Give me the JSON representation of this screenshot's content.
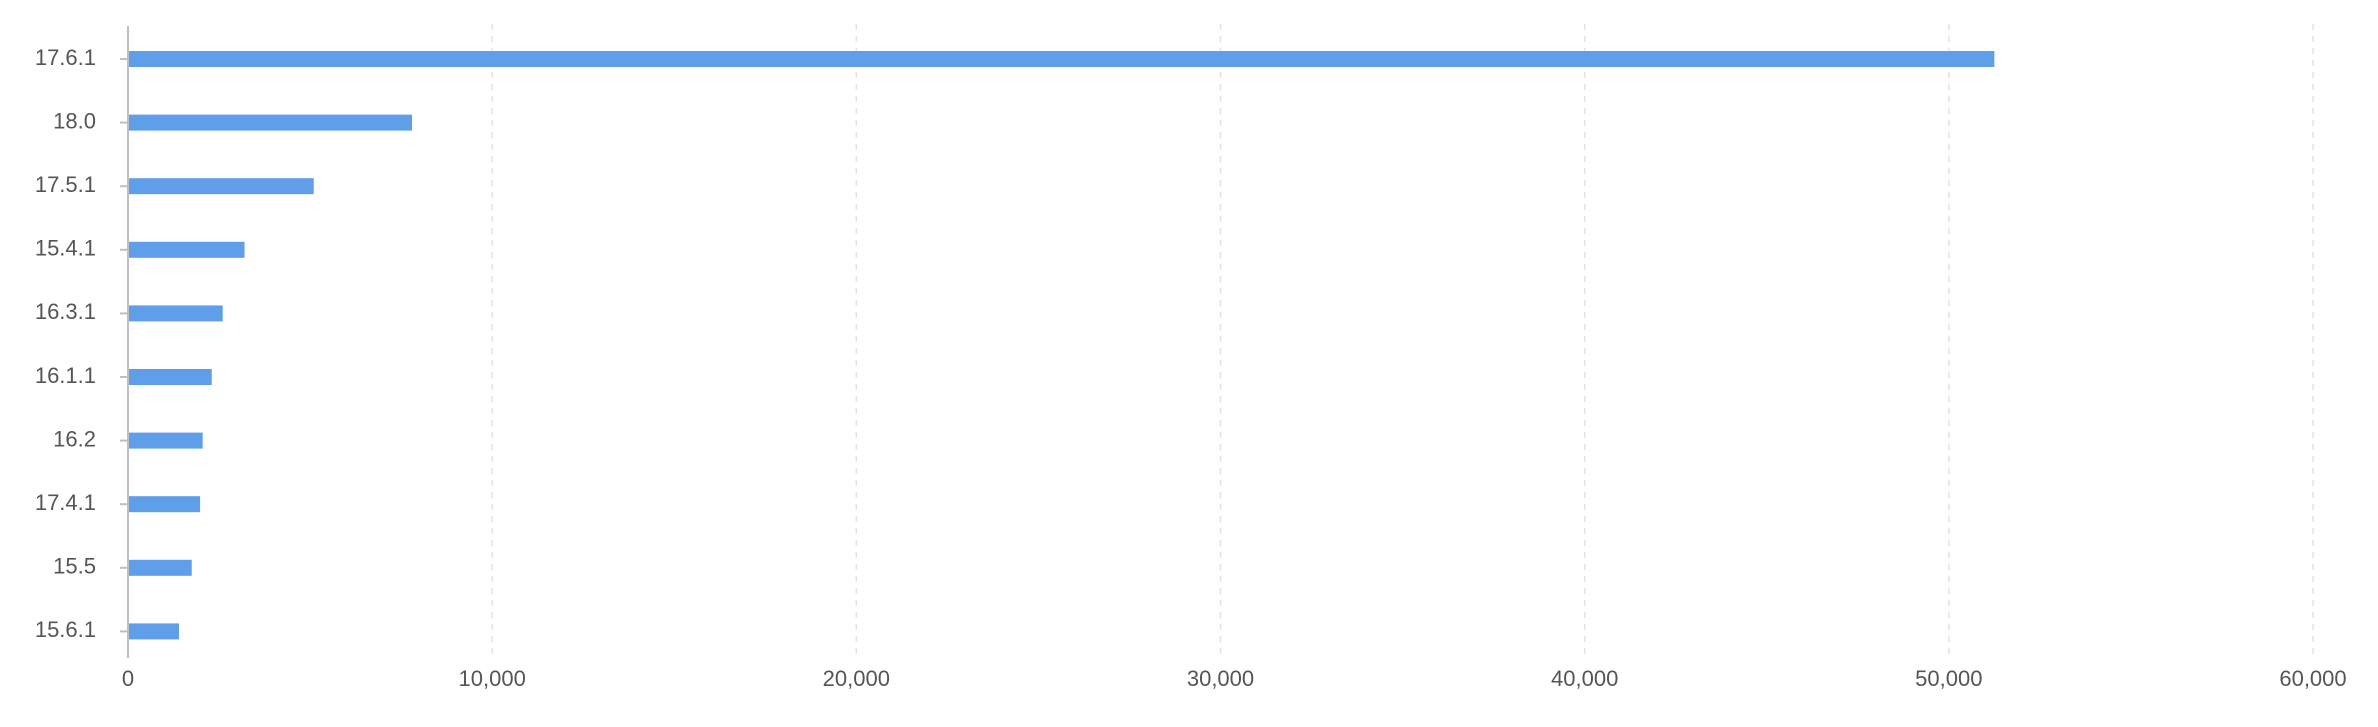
{
  "chart_data": {
    "type": "bar",
    "orientation": "horizontal",
    "categories": [
      "17.6.1",
      "18.0",
      "17.5.1",
      "15.4.1",
      "16.3.1",
      "16.1.1",
      "16.2",
      "17.4.1",
      "15.5",
      "15.6.1"
    ],
    "values": [
      51250,
      7800,
      5100,
      3200,
      2600,
      2300,
      2050,
      1980,
      1750,
      1400
    ],
    "xlim": [
      0,
      60000
    ],
    "x_ticks": [
      0,
      10000,
      20000,
      30000,
      40000,
      50000,
      60000
    ],
    "x_tick_labels": [
      "0",
      "10,000",
      "20,000",
      "30,000",
      "40,000",
      "50,000",
      "60,000"
    ],
    "title": "",
    "xlabel": "",
    "ylabel": "",
    "grid": "vertical dashed",
    "legend": "none",
    "colors": {
      "bar": "#5f9ee8",
      "grid": "#e3e3e3",
      "axis": "#bfbfbf",
      "tick_text": "#555555"
    }
  }
}
